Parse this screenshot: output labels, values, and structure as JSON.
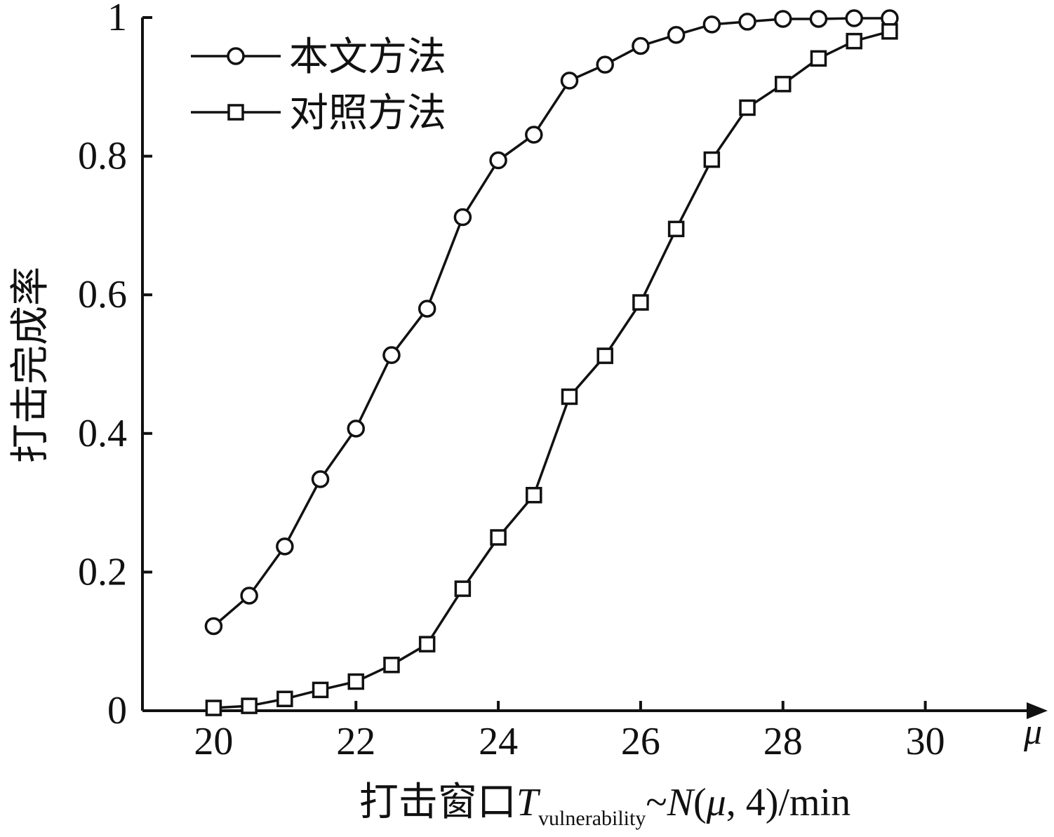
{
  "chart_data": {
    "type": "line",
    "x": [
      20,
      20.5,
      21,
      21.5,
      22,
      22.5,
      23,
      23.5,
      24,
      24.5,
      25,
      25.5,
      26,
      26.5,
      27,
      27.5,
      28,
      28.5,
      29,
      29.5
    ],
    "series": [
      {
        "name": "本文方法",
        "marker": "circle",
        "values": [
          0.122,
          0.166,
          0.237,
          0.334,
          0.407,
          0.513,
          0.58,
          0.712,
          0.794,
          0.831,
          0.909,
          0.932,
          0.959,
          0.975,
          0.99,
          0.994,
          0.998,
          0.998,
          0.999,
          0.999
        ]
      },
      {
        "name": "对照方法",
        "marker": "square",
        "values": [
          0.004,
          0.007,
          0.017,
          0.03,
          0.042,
          0.066,
          0.096,
          0.176,
          0.25,
          0.311,
          0.453,
          0.512,
          0.589,
          0.695,
          0.795,
          0.87,
          0.904,
          0.941,
          0.966,
          0.98
        ]
      }
    ],
    "xlim": [
      19,
      31
    ],
    "ylim": [
      0,
      1
    ],
    "xticks": [
      20,
      22,
      24,
      26,
      28,
      30
    ],
    "xtick_labels": [
      "20",
      "22",
      "24",
      "26",
      "28",
      "30"
    ],
    "yticks": [
      0,
      0.2,
      0.4,
      0.6,
      0.8,
      1
    ],
    "ytick_labels": [
      "0",
      "0.2",
      "0.4",
      "0.6",
      "0.8",
      "1"
    ],
    "xaxis_end_label": "μ",
    "xlabel": {
      "prefix": "打击窗口",
      "symbol": "T",
      "subscript": "vulnerability",
      "tilde": "~",
      "dist": "N",
      "open": "(",
      "param": "μ",
      "rest": ", 4)/min"
    },
    "ylabel": "打击完成率",
    "legend_position": "top-left",
    "grid": false
  }
}
